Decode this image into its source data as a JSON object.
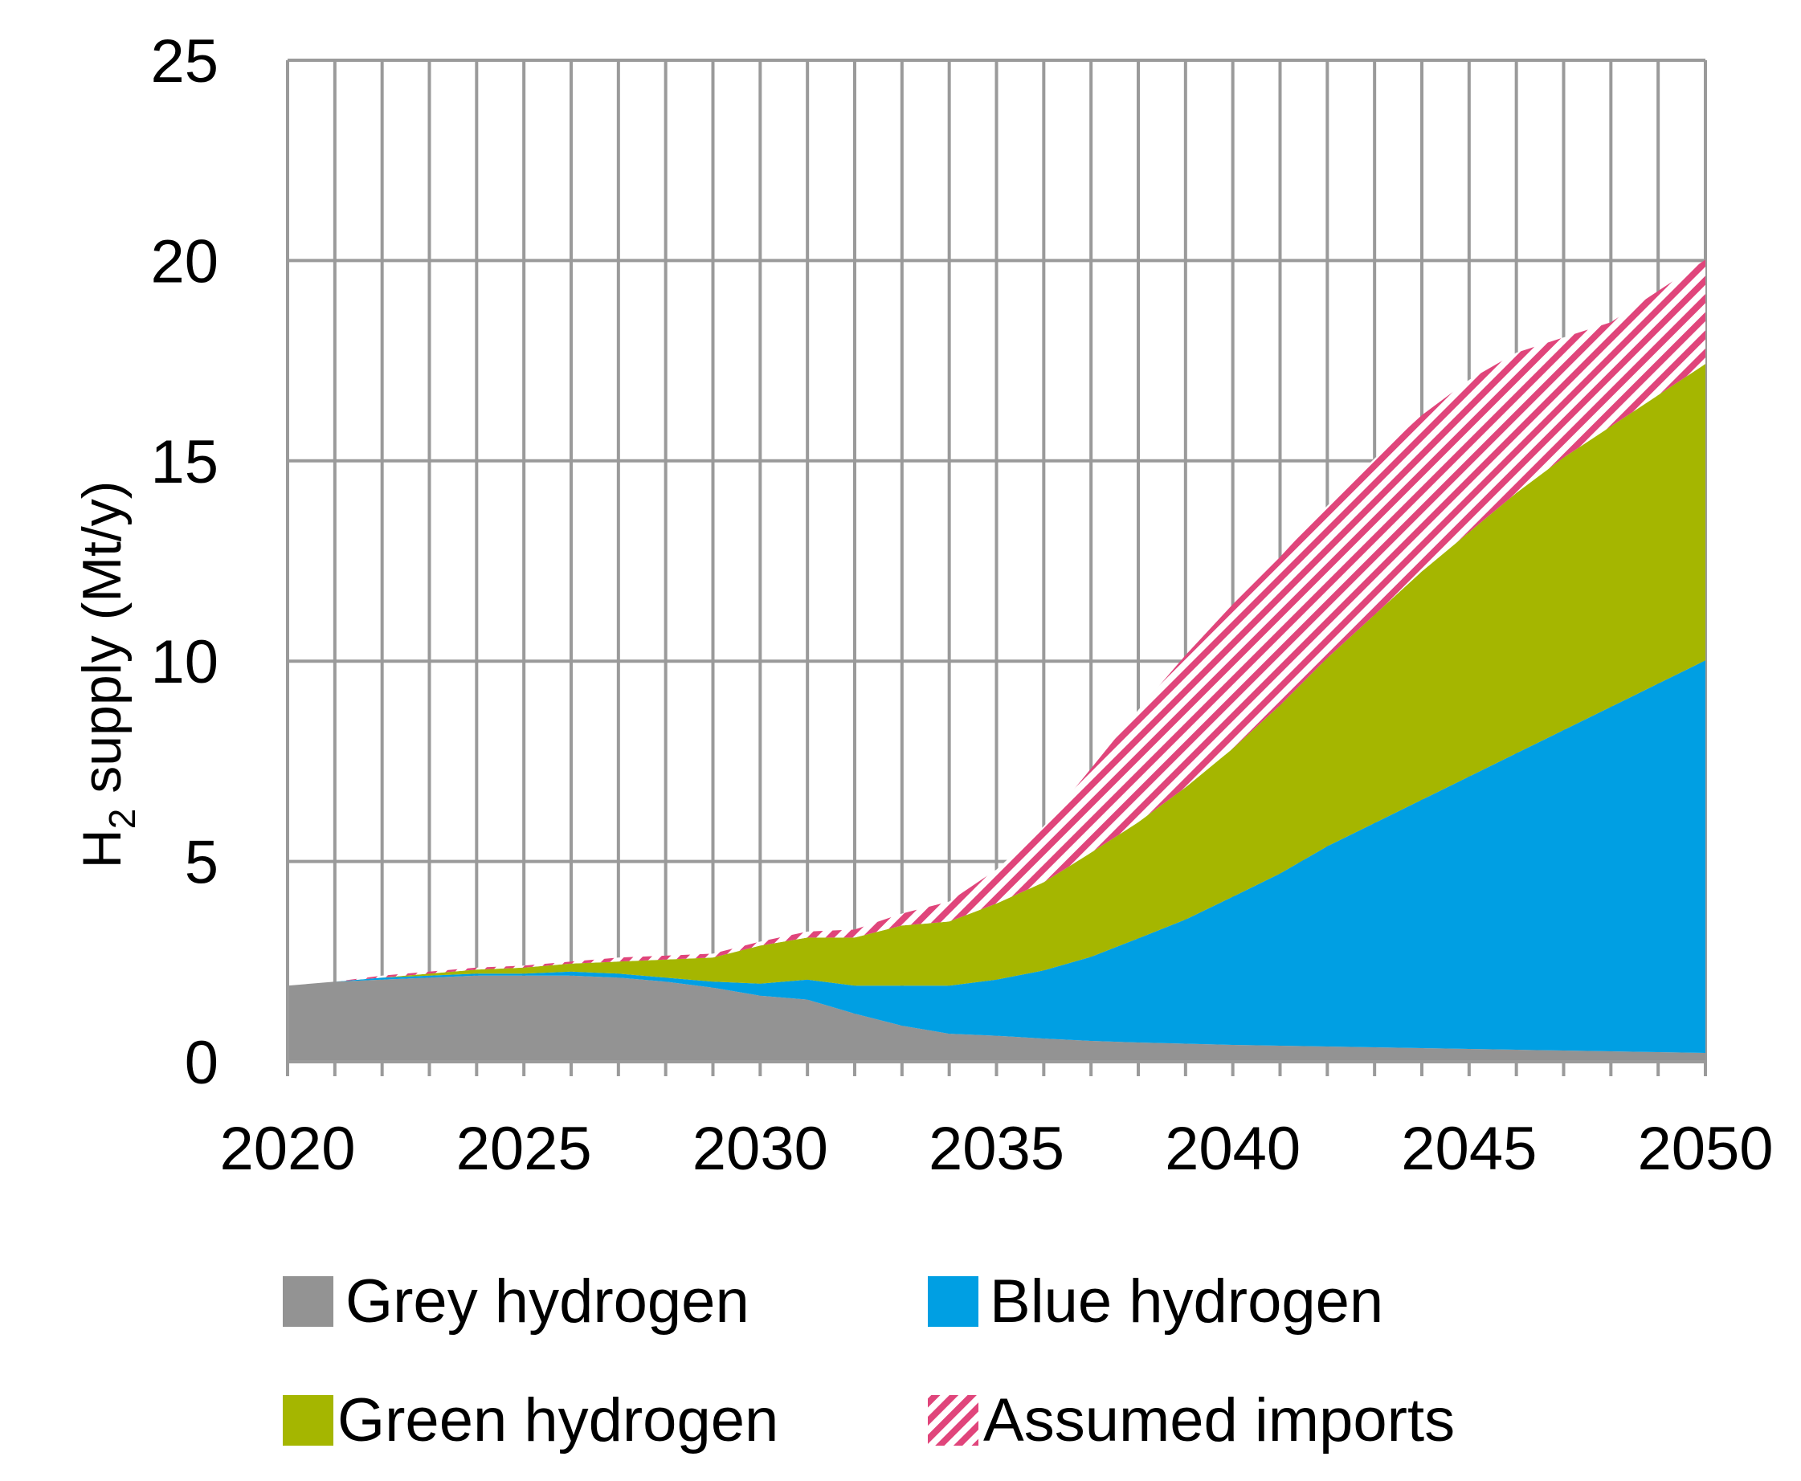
{
  "chart_data": {
    "type": "area",
    "stacked": true,
    "title": "",
    "xlabel": "",
    "ylabel_main": "H",
    "ylabel_sub": "2",
    "ylabel_rest": " supply (Mt/y)",
    "xlim": [
      2020,
      2050
    ],
    "ylim": [
      0,
      25
    ],
    "xticks": [
      "2020",
      "2025",
      "2030",
      "2035",
      "2040",
      "2045",
      "2050"
    ],
    "yticks": [
      "0",
      "5",
      "10",
      "15",
      "20",
      "25"
    ],
    "grid": true,
    "legend_position": "bottom",
    "x": [
      2020,
      2021,
      2022,
      2023,
      2024,
      2025,
      2026,
      2027,
      2028,
      2029,
      2030,
      2031,
      2032,
      2033,
      2034,
      2035,
      2036,
      2037,
      2038,
      2039,
      2040,
      2041,
      2042,
      2043,
      2044,
      2045,
      2046,
      2047,
      2048,
      2049,
      2050
    ],
    "series": [
      {
        "name": "Grey hydrogen",
        "color": "#939393",
        "values": [
          1.9,
          2.0,
          2.05,
          2.1,
          2.15,
          2.15,
          2.15,
          2.1,
          2.0,
          1.85,
          1.65,
          1.55,
          1.2,
          0.9,
          0.7,
          0.65,
          0.58,
          0.52,
          0.48,
          0.45,
          0.42,
          0.4,
          0.38,
          0.36,
          0.34,
          0.32,
          0.3,
          0.28,
          0.26,
          0.24,
          0.22
        ]
      },
      {
        "name": "Blue hydrogen",
        "color": "#009fe3",
        "values": [
          0.0,
          0.0,
          0.05,
          0.05,
          0.05,
          0.05,
          0.1,
          0.1,
          0.1,
          0.15,
          0.3,
          0.5,
          0.7,
          1.0,
          1.2,
          1.4,
          1.7,
          2.1,
          2.6,
          3.1,
          3.7,
          4.3,
          5.0,
          5.6,
          6.2,
          6.8,
          7.4,
          8.0,
          8.6,
          9.2,
          9.8
        ]
      },
      {
        "name": "Green hydrogen",
        "color": "#a5b600",
        "values": [
          0.0,
          0.0,
          0.0,
          0.05,
          0.1,
          0.15,
          0.2,
          0.3,
          0.45,
          0.6,
          0.95,
          1.05,
          1.2,
          1.5,
          1.6,
          1.9,
          2.2,
          2.6,
          2.9,
          3.3,
          3.7,
          4.2,
          4.7,
          5.2,
          5.7,
          6.1,
          6.5,
          6.8,
          7.0,
          7.2,
          7.4
        ]
      },
      {
        "name": "Assumed imports",
        "color": "#e0457b",
        "pattern": "hatched",
        "values": [
          0.0,
          0.0,
          0.05,
          0.05,
          0.05,
          0.05,
          0.05,
          0.1,
          0.1,
          0.1,
          0.1,
          0.15,
          0.2,
          0.3,
          0.5,
          0.85,
          1.4,
          2.1,
          2.8,
          3.3,
          3.6,
          3.7,
          3.8,
          3.9,
          3.9,
          3.8,
          3.5,
          3.0,
          2.6,
          2.6,
          2.6
        ]
      }
    ]
  }
}
